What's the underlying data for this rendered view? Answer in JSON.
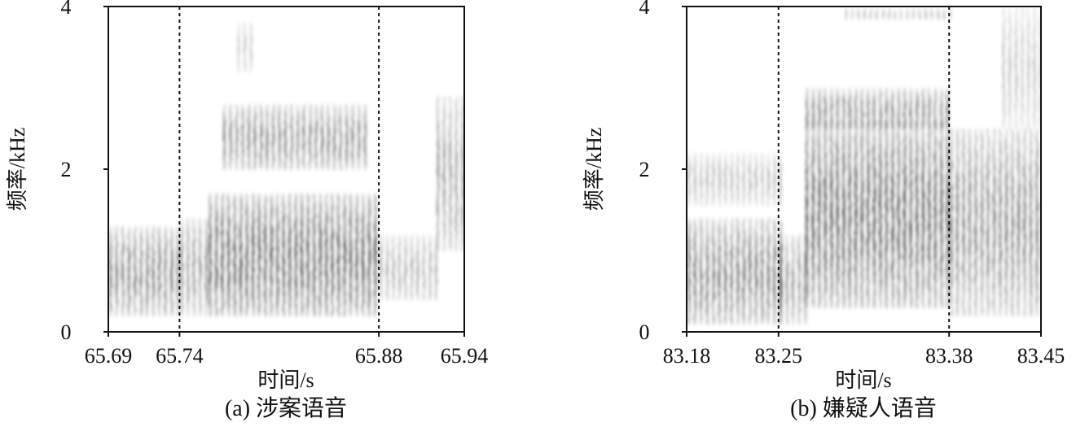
{
  "chart_data": [
    {
      "type": "heatmap",
      "subtype": "spectrogram",
      "caption": "(a) 涉案语音",
      "xlabel": "时间/s",
      "ylabel": "频率/kHz",
      "xlim": [
        65.69,
        65.94
      ],
      "ylim": [
        0,
        4
      ],
      "x_ticks": [
        65.69,
        65.74,
        65.88,
        65.94
      ],
      "x_tick_labels": [
        "65.69",
        "65.74",
        "65.88",
        "65.94"
      ],
      "y_ticks": [
        0,
        2,
        4
      ],
      "y_tick_labels": [
        "0",
        "2",
        "4"
      ],
      "dashed_markers": [
        65.74,
        65.88
      ],
      "colormap": "gray_r",
      "energy_regions": [
        {
          "t": [
            65.69,
            65.74
          ],
          "f": [
            0.2,
            1.3
          ],
          "intensity": 0.55,
          "striation": 0.7
        },
        {
          "t": [
            65.74,
            65.76
          ],
          "f": [
            0.2,
            1.4
          ],
          "intensity": 0.45,
          "striation": 0.7
        },
        {
          "t": [
            65.76,
            65.88
          ],
          "f": [
            0.2,
            1.7
          ],
          "intensity": 0.85,
          "striation": 0.6
        },
        {
          "t": [
            65.77,
            65.87
          ],
          "f": [
            2.0,
            2.8
          ],
          "intensity": 0.45,
          "striation": 0.8
        },
        {
          "t": [
            65.78,
            65.79
          ],
          "f": [
            3.2,
            3.85
          ],
          "intensity": 0.3,
          "striation": 0.5
        },
        {
          "t": [
            65.88,
            65.92
          ],
          "f": [
            0.4,
            1.2
          ],
          "intensity": 0.3,
          "striation": 0.8
        },
        {
          "t": [
            65.92,
            65.94
          ],
          "f": [
            1.0,
            2.9
          ],
          "intensity": 0.5,
          "striation": 0.6
        }
      ]
    },
    {
      "type": "heatmap",
      "subtype": "spectrogram",
      "caption": "(b) 嫌疑人语音",
      "xlabel": "时间/s",
      "ylabel": "频率/kHz",
      "xlim": [
        83.18,
        83.45
      ],
      "ylim": [
        0,
        4
      ],
      "x_ticks": [
        83.18,
        83.25,
        83.38,
        83.45
      ],
      "x_tick_labels": [
        "83.18",
        "83.25",
        "83.38",
        "83.45"
      ],
      "y_ticks": [
        0,
        2,
        4
      ],
      "y_tick_labels": [
        "0",
        "2",
        "4"
      ],
      "dashed_markers": [
        83.25,
        83.38
      ],
      "colormap": "gray_r",
      "energy_regions": [
        {
          "t": [
            83.18,
            83.25
          ],
          "f": [
            0.1,
            1.4
          ],
          "intensity": 0.6,
          "striation": 0.7
        },
        {
          "t": [
            83.18,
            83.25
          ],
          "f": [
            1.6,
            2.2
          ],
          "intensity": 0.3,
          "striation": 0.7
        },
        {
          "t": [
            83.25,
            83.27
          ],
          "f": [
            0.1,
            1.2
          ],
          "intensity": 0.45,
          "striation": 0.7
        },
        {
          "t": [
            83.27,
            83.38
          ],
          "f": [
            0.3,
            2.6
          ],
          "intensity": 0.85,
          "striation": 0.6
        },
        {
          "t": [
            83.27,
            83.38
          ],
          "f": [
            2.5,
            3.0
          ],
          "intensity": 0.45,
          "striation": 0.8
        },
        {
          "t": [
            83.3,
            83.38
          ],
          "f": [
            3.85,
            4.0
          ],
          "intensity": 0.3,
          "striation": 0.6
        },
        {
          "t": [
            83.38,
            83.45
          ],
          "f": [
            0.2,
            2.5
          ],
          "intensity": 0.55,
          "striation": 0.7
        },
        {
          "t": [
            83.42,
            83.45
          ],
          "f": [
            2.5,
            4.0
          ],
          "intensity": 0.3,
          "striation": 0.6
        }
      ]
    }
  ]
}
